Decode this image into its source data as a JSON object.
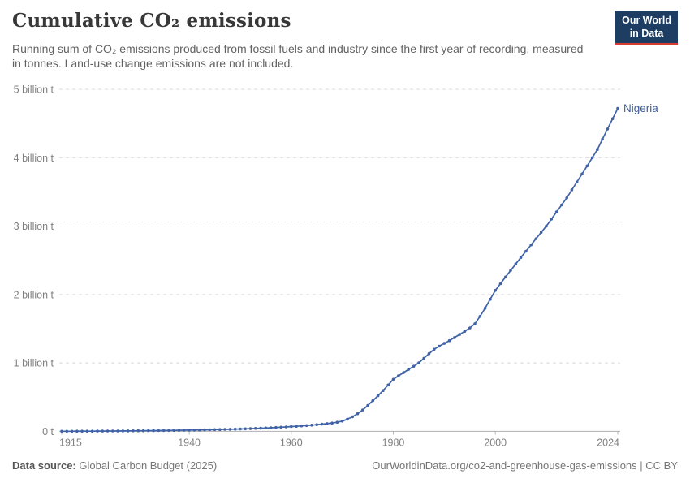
{
  "header": {
    "title": "Cumulative CO₂ emissions",
    "subtitle": "Running sum of CO₂ emissions produced from fossil fuels and industry since the first year of recording, measured in tonnes. Land-use change emissions are not included.",
    "logo": {
      "line1": "Our World",
      "line2": "in Data"
    }
  },
  "footer": {
    "source_label": "Data source:",
    "source_value": " Global Carbon Budget (2025)",
    "link": "OurWorldinData.org/co2-and-greenhouse-gas-emissions | CC BY"
  },
  "colors": {
    "line": "#4063a8",
    "series_label": "#3d5c99",
    "grid": "#d9d9d9",
    "axis": "#b0b0b0",
    "tick_text": "#7f7f7f",
    "logo_bg": "#1d3d63",
    "logo_red": "#d93b32"
  },
  "chart_data": {
    "type": "line",
    "title": "Cumulative CO₂ emissions",
    "subtitle": "Running sum of CO₂ emissions produced from fossil fuels and industry since the first year of recording, measured in tonnes. Land-use change emissions are not included.",
    "unit": "billion t",
    "xlabel": "",
    "ylabel": "",
    "xlim": [
      1915,
      2024
    ],
    "ylim": [
      0,
      5
    ],
    "grid": "horizontal-dashed",
    "legend_position": "end-of-line-label",
    "xticks": [
      1915,
      1940,
      1960,
      1980,
      2000,
      2024
    ],
    "yticks": [
      {
        "v": 0,
        "label": "0 t"
      },
      {
        "v": 1,
        "label": "1 billion t"
      },
      {
        "v": 2,
        "label": "2 billion t"
      },
      {
        "v": 3,
        "label": "3 billion t"
      },
      {
        "v": 4,
        "label": "4 billion t"
      },
      {
        "v": 5,
        "label": "5 billion t"
      }
    ],
    "series": [
      {
        "name": "Nigeria",
        "start_year": 1915,
        "end_year": 2024,
        "unit": "billion tonnes",
        "values": [
          0.001,
          0.0012,
          0.0015,
          0.0018,
          0.0021,
          0.0025,
          0.0029,
          0.0033,
          0.0037,
          0.0042,
          0.0047,
          0.0052,
          0.0058,
          0.0064,
          0.0071,
          0.0078,
          0.0085,
          0.0092,
          0.01,
          0.0108,
          0.0117,
          0.0127,
          0.0138,
          0.0149,
          0.0161,
          0.0173,
          0.0186,
          0.0199,
          0.0213,
          0.0228,
          0.0244,
          0.0261,
          0.0279,
          0.0299,
          0.032,
          0.0343,
          0.0368,
          0.0395,
          0.0424,
          0.0455,
          0.0489,
          0.0525,
          0.0563,
          0.0603,
          0.0645,
          0.07,
          0.074,
          0.079,
          0.084,
          0.09,
          0.097,
          0.105,
          0.113,
          0.121,
          0.133,
          0.15,
          0.178,
          0.212,
          0.257,
          0.312,
          0.378,
          0.448,
          0.52,
          0.596,
          0.677,
          0.76,
          0.81,
          0.858,
          0.905,
          0.952,
          1.0,
          1.068,
          1.136,
          1.2,
          1.245,
          1.285,
          1.325,
          1.37,
          1.415,
          1.462,
          1.51,
          1.572,
          1.68,
          1.8,
          1.93,
          2.06,
          2.158,
          2.255,
          2.35,
          2.445,
          2.54,
          2.633,
          2.725,
          2.817,
          2.909,
          3.0,
          3.103,
          3.207,
          3.31,
          3.413,
          3.53,
          3.645,
          3.762,
          3.88,
          4.0,
          4.12,
          4.27,
          4.42,
          4.57,
          4.72
        ]
      }
    ]
  }
}
